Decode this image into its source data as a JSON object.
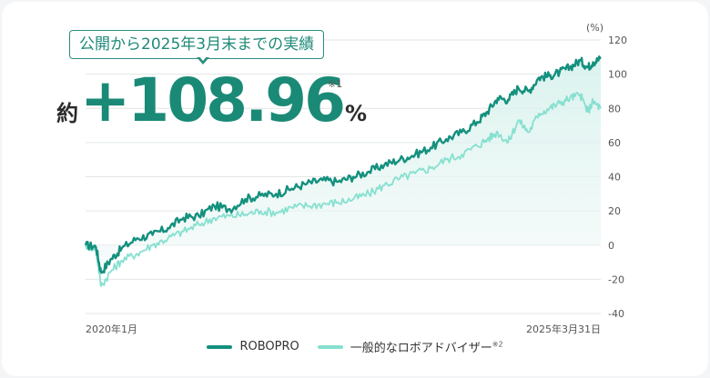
{
  "callout_text": "公開から2025年3月末までの実績",
  "headline": {
    "prefix": "約",
    "value": "+108.96",
    "unit": "%",
    "footnote": "※1"
  },
  "colors": {
    "robopro": "#14907e",
    "advisor": "#86e0cf",
    "grid": "#e3e6e6",
    "axis_text": "#555555"
  },
  "chart_data": {
    "type": "line",
    "yunit": "(%)",
    "ylim": [
      -40,
      120
    ],
    "yticks": [
      120,
      100,
      80,
      60,
      40,
      20,
      0,
      -20,
      -40
    ],
    "xlabels": [
      "2020年1月",
      "2025年3月31日"
    ],
    "grid": true,
    "legend_position": "bottom-center",
    "series": [
      {
        "name": "ROBOPRO",
        "points": [
          [
            0,
            0
          ],
          [
            0.02,
            -1
          ],
          [
            0.03,
            -16
          ],
          [
            0.05,
            -8
          ],
          [
            0.07,
            -2
          ],
          [
            0.1,
            4
          ],
          [
            0.13,
            6
          ],
          [
            0.16,
            10
          ],
          [
            0.19,
            16
          ],
          [
            0.22,
            17
          ],
          [
            0.25,
            23
          ],
          [
            0.28,
            21
          ],
          [
            0.31,
            27
          ],
          [
            0.34,
            29
          ],
          [
            0.37,
            30
          ],
          [
            0.4,
            33
          ],
          [
            0.43,
            36
          ],
          [
            0.46,
            38
          ],
          [
            0.49,
            37
          ],
          [
            0.52,
            40
          ],
          [
            0.55,
            43
          ],
          [
            0.58,
            47
          ],
          [
            0.61,
            50
          ],
          [
            0.64,
            53
          ],
          [
            0.67,
            57
          ],
          [
            0.7,
            62
          ],
          [
            0.73,
            66
          ],
          [
            0.76,
            72
          ],
          [
            0.78,
            78
          ],
          [
            0.8,
            86
          ],
          [
            0.82,
            85
          ],
          [
            0.84,
            92
          ],
          [
            0.86,
            90
          ],
          [
            0.88,
            98
          ],
          [
            0.9,
            99
          ],
          [
            0.92,
            101
          ],
          [
            0.94,
            104
          ],
          [
            0.96,
            108
          ],
          [
            0.975,
            104
          ],
          [
            0.985,
            107
          ],
          [
            1.0,
            109
          ]
        ]
      },
      {
        "name": "一般的なロボアドバイザー",
        "points": [
          [
            0,
            0
          ],
          [
            0.02,
            -2
          ],
          [
            0.03,
            -24
          ],
          [
            0.05,
            -15
          ],
          [
            0.07,
            -9
          ],
          [
            0.1,
            -5
          ],
          [
            0.13,
            0
          ],
          [
            0.16,
            4
          ],
          [
            0.19,
            8
          ],
          [
            0.22,
            12
          ],
          [
            0.25,
            16
          ],
          [
            0.28,
            17
          ],
          [
            0.31,
            18
          ],
          [
            0.34,
            20
          ],
          [
            0.37,
            19
          ],
          [
            0.4,
            22
          ],
          [
            0.43,
            23
          ],
          [
            0.46,
            24
          ],
          [
            0.49,
            25
          ],
          [
            0.52,
            27
          ],
          [
            0.55,
            30
          ],
          [
            0.58,
            35
          ],
          [
            0.61,
            39
          ],
          [
            0.64,
            42
          ],
          [
            0.67,
            45
          ],
          [
            0.7,
            50
          ],
          [
            0.73,
            53
          ],
          [
            0.76,
            58
          ],
          [
            0.78,
            62
          ],
          [
            0.8,
            66
          ],
          [
            0.82,
            60
          ],
          [
            0.84,
            73
          ],
          [
            0.86,
            66
          ],
          [
            0.88,
            77
          ],
          [
            0.9,
            80
          ],
          [
            0.92,
            83
          ],
          [
            0.94,
            86
          ],
          [
            0.96,
            88
          ],
          [
            0.975,
            78
          ],
          [
            0.985,
            84
          ],
          [
            1.0,
            80
          ]
        ]
      }
    ]
  }
}
